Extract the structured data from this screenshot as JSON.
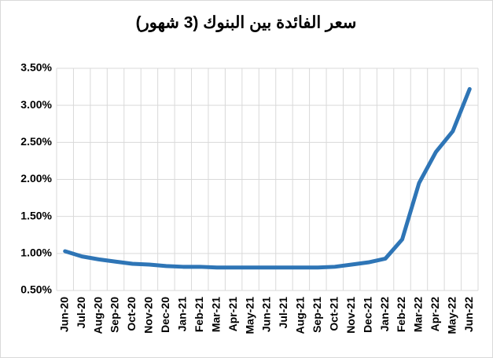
{
  "chart_data": {
    "type": "line",
    "title": "سعر الفائدة بين البنوك (3 شهور)",
    "categories": [
      "Jun-20",
      "Jul-20",
      "Aug-20",
      "Sep-20",
      "Oct-20",
      "Nov-20",
      "Dec-20",
      "Jan-21",
      "Feb-21",
      "Mar-21",
      "Apr-21",
      "May-21",
      "Jun-21",
      "Jul-21",
      "Aug-21",
      "Sep-21",
      "Oct-21",
      "Nov-21",
      "Dec-21",
      "Jan-22",
      "Feb-22",
      "Mar-22",
      "Apr-22",
      "May-22",
      "Jun-22"
    ],
    "values": [
      1.03,
      0.96,
      0.92,
      0.89,
      0.86,
      0.85,
      0.83,
      0.82,
      0.82,
      0.81,
      0.81,
      0.81,
      0.81,
      0.81,
      0.81,
      0.81,
      0.82,
      0.85,
      0.88,
      0.93,
      1.19,
      1.95,
      2.37,
      2.65,
      3.22
    ],
    "color": "#2e75b6",
    "ylim": [
      0.5,
      3.5
    ],
    "yticks": [
      {
        "value": 0.5,
        "label": "0.50%"
      },
      {
        "value": 1,
        "label": "1.00%"
      },
      {
        "value": 1.5,
        "label": "1.50%"
      },
      {
        "value": 2,
        "label": "2.00%"
      },
      {
        "value": 2.5,
        "label": "2.50%"
      },
      {
        "value": 3,
        "label": "3.00%"
      },
      {
        "value": 3.5,
        "label": "3.50%"
      }
    ],
    "grid": true
  }
}
